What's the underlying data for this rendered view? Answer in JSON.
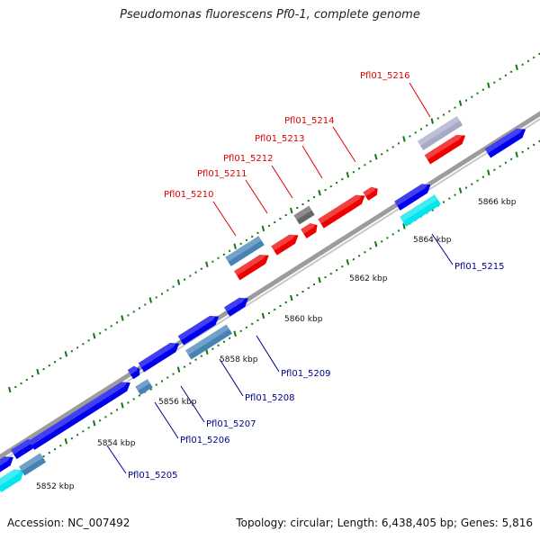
{
  "title": "Pseudomonas fluorescens Pf0-1, complete genome",
  "footer": {
    "accession": "Accession: NC_007492",
    "topology": "Topology: circular; Length: 6,438,405 bp; Genes: 5,816"
  },
  "colors": {
    "top_strand_label": "#dd0000",
    "bottom_strand_label": "#00008b",
    "axis": "#999999",
    "tick": "#117711",
    "gene_blue": "#0000ee",
    "gene_red": "#ee0000",
    "gene_steel": "#4682b4",
    "gene_cyan": "#00e5ee",
    "gene_gray": "#666666",
    "gene_lavender": "#a8a8c8"
  },
  "scale_labels": [
    "5852 kbp",
    "5854 kbp",
    "5856 kbp",
    "5858 kbp",
    "5860 kbp",
    "5862 kbp",
    "5864 kbp",
    "5866 kbp"
  ],
  "gene_labels_top": [
    "Pfl01_5210",
    "Pfl01_5211",
    "Pfl01_5212",
    "Pfl01_5213",
    "Pfl01_5214",
    "Pfl01_5216"
  ],
  "gene_labels_bottom": [
    "Pfl01_5205",
    "Pfl01_5206",
    "Pfl01_5207",
    "Pfl01_5208",
    "Pfl01_5209",
    "Pfl01_5215"
  ]
}
